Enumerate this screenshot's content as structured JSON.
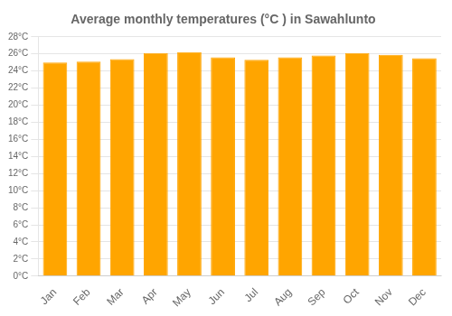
{
  "chart_data": {
    "type": "bar",
    "title": "Average monthly temperatures (°C ) in Sawahlunto",
    "categories": [
      "Jan",
      "Feb",
      "Mar",
      "Apr",
      "May",
      "Jun",
      "Jul",
      "Aug",
      "Sep",
      "Oct",
      "Nov",
      "Dec"
    ],
    "values": [
      25.0,
      25.1,
      25.4,
      26.1,
      26.2,
      25.6,
      25.3,
      25.6,
      25.8,
      26.1,
      25.9,
      25.5
    ],
    "color": "#FFA500",
    "ylim": [
      0,
      28
    ],
    "yticks": [
      {
        "value": 0,
        "label": "0°C"
      },
      {
        "value": 2,
        "label": "2°C"
      },
      {
        "value": 4,
        "label": "4°C"
      },
      {
        "value": 6,
        "label": "6°C"
      },
      {
        "value": 8,
        "label": "8°C"
      },
      {
        "value": 10,
        "label": "10°C"
      },
      {
        "value": 12,
        "label": "12°C"
      },
      {
        "value": 14,
        "label": "14°C"
      },
      {
        "value": 16,
        "label": "16°C"
      },
      {
        "value": 18,
        "label": "18°C"
      },
      {
        "value": 20,
        "label": "20°C"
      },
      {
        "value": 22,
        "label": "22°C"
      },
      {
        "value": 24,
        "label": "24°C"
      },
      {
        "value": 26,
        "label": "26°C"
      },
      {
        "value": 28,
        "label": "28°C"
      }
    ],
    "grid": true
  }
}
